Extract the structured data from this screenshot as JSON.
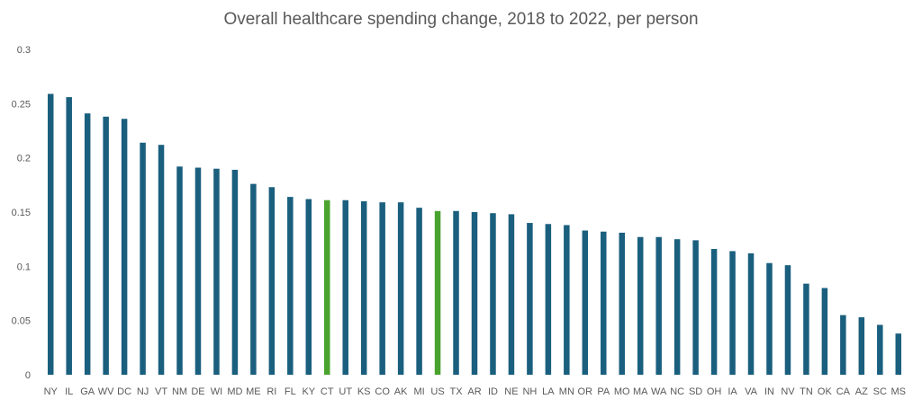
{
  "chart_data": {
    "type": "bar",
    "title": "Overall healthcare spending change, 2018 to 2022, per person",
    "xlabel": "",
    "ylabel": "",
    "ylim": [
      0,
      0.3
    ],
    "yticks": [
      "0",
      "0.05",
      "0.1",
      "0.15",
      "0.2",
      "0.25",
      "0.3"
    ],
    "grid": false,
    "legend": "none",
    "colors": {
      "default": "#1a5f7e",
      "highlight": "#4aa32e",
      "tick_text": "#595959"
    },
    "highlight_categories": [
      "CT",
      "US"
    ],
    "categories": [
      "NY",
      "IL",
      "GA",
      "WV",
      "DC",
      "NJ",
      "VT",
      "NM",
      "DE",
      "WI",
      "MD",
      "ME",
      "RI",
      "FL",
      "KY",
      "CT",
      "UT",
      "KS",
      "CO",
      "AK",
      "MI",
      "US",
      "TX",
      "AR",
      "ID",
      "NE",
      "NH",
      "LA",
      "MN",
      "OR",
      "PA",
      "MO",
      "MA",
      "WA",
      "NC",
      "SD",
      "OH",
      "IA",
      "VA",
      "IN",
      "NV",
      "TN",
      "OK",
      "CA",
      "AZ",
      "SC",
      "MS"
    ],
    "values": [
      0.259,
      0.256,
      0.241,
      0.238,
      0.236,
      0.214,
      0.212,
      0.192,
      0.191,
      0.19,
      0.189,
      0.176,
      0.173,
      0.164,
      0.162,
      0.161,
      0.161,
      0.16,
      0.159,
      0.159,
      0.154,
      0.151,
      0.151,
      0.15,
      0.149,
      0.148,
      0.14,
      0.139,
      0.138,
      0.133,
      0.132,
      0.131,
      0.127,
      0.127,
      0.125,
      0.124,
      0.116,
      0.114,
      0.112,
      0.103,
      0.101,
      0.084,
      0.08,
      0.055,
      0.053,
      0.046,
      0.038
    ]
  }
}
